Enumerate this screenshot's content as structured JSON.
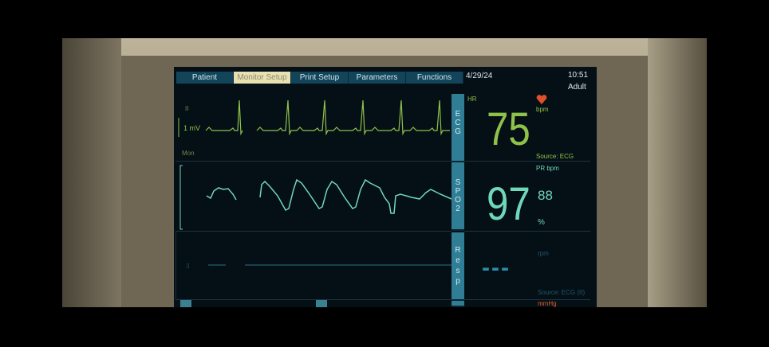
{
  "tabs": [
    {
      "label": "Patient"
    },
    {
      "label": "Monitor Setup",
      "active": true
    },
    {
      "label": "Print Setup"
    },
    {
      "label": "Parameters"
    },
    {
      "label": "Functions"
    }
  ],
  "header": {
    "date": "4/29/24",
    "time": "10:51",
    "patient_type": "Adult"
  },
  "ecg": {
    "lead": "II",
    "scale": "1 mV",
    "filter": "Mon",
    "label": "ECG",
    "hr_label": "HR",
    "unit": "bpm",
    "value": "75",
    "source": "Source: ECG",
    "icon": "heart-icon"
  },
  "spo2": {
    "label": "SPO2",
    "pr_label": "PR bpm",
    "value": "97",
    "pr_value": "88",
    "unit": "%"
  },
  "resp": {
    "label": "Resp",
    "scale": "3",
    "unit": "rpm",
    "value": "---",
    "source": "Source: ECG (II)"
  },
  "bp": {
    "unit": "mmHg"
  },
  "colors": {
    "ecg": "#8fc24a",
    "spo2": "#6fd8b8",
    "resp": "#2a8fa8",
    "tab": "#12455a",
    "tab_active": "#e8e0b0",
    "alarm": "#e0502a"
  }
}
